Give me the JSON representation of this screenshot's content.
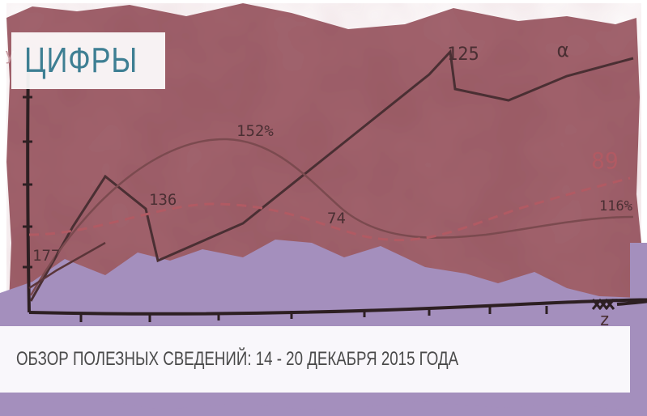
{
  "header": {
    "title": "ЦИФРЫ"
  },
  "caption": {
    "text": "ОБЗОР ПОЛЕЗНЫХ СВЕДЕНИЙ: 14 - 20 ДЕКАБРЯ 2015 ГОДА"
  },
  "annotations": {
    "a177": "177",
    "a136": "136",
    "a152": "152%",
    "a125": "125",
    "alpha": "α",
    "a89": "89",
    "a74": "74",
    "a116": "116%",
    "axis_z": "z",
    "axis_y": "y"
  },
  "colors": {
    "paper": "#a2646e",
    "band": "#a48fbd",
    "title": "#3e7f93",
    "dash": "#b15a63"
  }
}
